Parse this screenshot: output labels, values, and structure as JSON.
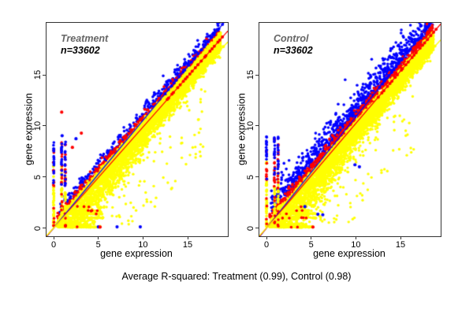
{
  "figure": {
    "background": "#ffffff",
    "caption": "Average R-squared: Treatment (0.99), Control (0.98)"
  },
  "chart_data": {
    "type": "scatter",
    "point_colors": {
      "yellow": "#ffff00",
      "red": "#ff0000",
      "blue": "#0000ff"
    },
    "annotation_color": "#666666",
    "axis_color": "#333333",
    "panels": [
      {
        "label": "Treatment",
        "n_label": "n=33602",
        "n": 33602,
        "r_squared": 0.99,
        "xlabel": "gene expression",
        "ylabel": "gene expression",
        "xlim": [
          -0.8,
          19.5
        ],
        "ylim": [
          -0.8,
          20.1
        ],
        "xticks": [
          0,
          5,
          10,
          15
        ],
        "yticks": [
          0,
          5,
          10,
          15
        ],
        "lines": [
          {
            "color": "#0000ff",
            "slope": 1.055,
            "intercept": 0
          },
          {
            "color": "#ff0000",
            "slope": 0.99,
            "intercept": 0
          },
          {
            "color": "#ffff00",
            "slope": 0.935,
            "intercept": 0
          }
        ],
        "cloud": {
          "seed": 101,
          "yellow_n": 5200,
          "deep_n": 70,
          "red_n": 700,
          "blue_n": 400,
          "red_offset": 0.3,
          "red_sd": 0.35,
          "blue_offset": 0.7,
          "blue_sd": 0.6,
          "below_sd_base": 0.5,
          "below_sd_amp": 3.0,
          "below_sd_decay": 6.0
        },
        "stripe_columns": [
          0,
          0.9,
          1.3
        ],
        "stripe_rows": [
          0.1,
          1.0,
          1.4,
          1.7,
          2.1
        ],
        "column_cap": 8.3,
        "extra_points": [
          {
            "x": 0.9,
            "y": 11.35,
            "color": "#ff0000"
          },
          {
            "x": 0.95,
            "y": 9.05,
            "color": "#0000ff"
          },
          {
            "x": 2.5,
            "y": 8.75,
            "color": "#0000ff"
          },
          {
            "x": 3.1,
            "y": 9.3,
            "color": "#ff0000"
          },
          {
            "x": 2.1,
            "y": 7.9,
            "color": "#ff0000"
          },
          {
            "x": 5.0,
            "y": 0.12,
            "color": "#0000ff"
          },
          {
            "x": 7.1,
            "y": 0.12,
            "color": "#0000ff"
          },
          {
            "x": 9.7,
            "y": 0.12,
            "color": "#0000ff"
          },
          {
            "x": 5.2,
            "y": 0.1,
            "color": "#ff0000"
          }
        ]
      },
      {
        "label": "Control",
        "n_label": "n=33602",
        "n": 33602,
        "r_squared": 0.98,
        "xlabel": "gene expression",
        "ylabel": "gene expression",
        "xlim": [
          -0.8,
          19.5
        ],
        "ylim": [
          -0.8,
          20.1
        ],
        "xticks": [
          0,
          5,
          10,
          15
        ],
        "yticks": [
          0,
          5,
          10,
          15
        ],
        "lines": [
          {
            "color": "#0000ff",
            "slope": 1.09,
            "intercept": 0
          },
          {
            "color": "#ff0000",
            "slope": 1.025,
            "intercept": 0
          },
          {
            "color": "#ffff00",
            "slope": 0.945,
            "intercept": 0
          }
        ],
        "cloud": {
          "seed": 202,
          "yellow_n": 5200,
          "deep_n": 70,
          "red_n": 700,
          "blue_n": 950,
          "red_offset": 0.35,
          "red_sd": 0.5,
          "blue_offset": 0.9,
          "blue_sd": 1.15,
          "below_sd_base": 0.5,
          "below_sd_amp": 3.0,
          "below_sd_decay": 6.0
        },
        "stripe_columns": [
          0,
          0.9,
          1.3
        ],
        "stripe_rows": [
          0.1,
          1.0,
          1.4,
          1.7,
          2.1
        ],
        "column_cap": 8.8,
        "extra_points": [
          {
            "x": 5.75,
            "y": 1.35,
            "color": "#0000ff"
          },
          {
            "x": 6.3,
            "y": 1.3,
            "color": "#0000ff"
          },
          {
            "x": 9.9,
            "y": 6.2,
            "color": "#0000ff"
          },
          {
            "x": 10.4,
            "y": 6.0,
            "color": "#0000ff"
          },
          {
            "x": 4.3,
            "y": 2.1,
            "color": "#0000ff"
          },
          {
            "x": 5.2,
            "y": 0.1,
            "color": "#ff0000"
          }
        ]
      }
    ]
  }
}
